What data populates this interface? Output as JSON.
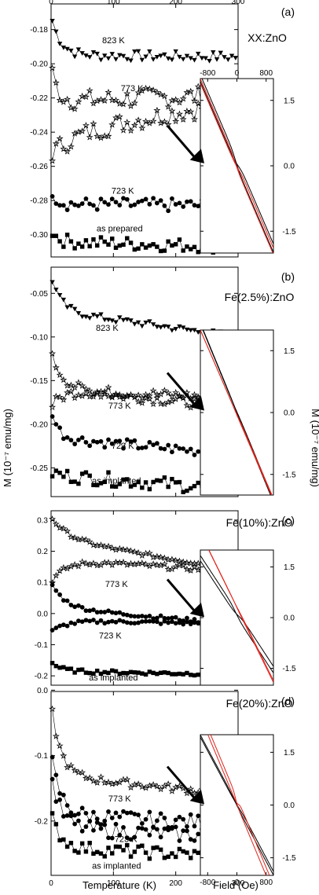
{
  "figure": {
    "y_axis_label": "M (10⁻⁷ emu/mg)",
    "right_y_axis_label": "M (10⁻⁷ emu/mg)",
    "x_axis_label": "Temperature (K)",
    "right_x_axis_label": "Field (Oe)"
  },
  "colors": {
    "black": "#000000",
    "red": "#e0241b"
  },
  "chart_data": [
    {
      "id": "a",
      "type": "scatter",
      "panel_label": "(a)",
      "sample": "XX:ZnO",
      "xlabel": "Temperature (K)",
      "ylabel": "M (10⁻⁷ emu/mg)",
      "xlim": [
        0,
        300
      ],
      "ylim": [
        -0.313,
        -0.165
      ],
      "xticks": [
        0,
        100,
        200,
        300
      ],
      "yticks": [
        -0.18,
        -0.2,
        -0.22,
        -0.24,
        -0.26,
        -0.28,
        -0.3
      ],
      "ytick_labels": [
        "-0.18",
        "-0.20",
        "-0.22",
        "-0.24",
        "-0.26",
        "-0.28",
        "-0.30"
      ],
      "series": [
        {
          "name": "823 K",
          "marker": "triangle-down",
          "start": -0.172,
          "plateau": -0.195,
          "end": -0.196,
          "tau": 15,
          "noise": 0.0015
        },
        {
          "name": "773 K",
          "marker": "star",
          "start": -0.202,
          "plateau": -0.222,
          "end": -0.218,
          "tau": 10,
          "noise": 0.003
        },
        {
          "name": "",
          "marker": "star",
          "start": -0.253,
          "plateau": -0.242,
          "end": -0.222,
          "tau": 30,
          "noise": 0.003
        },
        {
          "name": "723 K",
          "marker": "circle",
          "start": -0.272,
          "plateau": -0.282,
          "end": -0.283,
          "tau": 8,
          "noise": 0.002
        },
        {
          "name": "as prepared",
          "marker": "square",
          "start": -0.297,
          "plateau": -0.304,
          "end": -0.307,
          "tau": 10,
          "noise": 0.002
        }
      ],
      "annotations": [
        {
          "text": "823 K",
          "x": 100,
          "y": -0.188
        },
        {
          "text": "773 K",
          "x": 130,
          "y": -0.216
        },
        {
          "text": "723 K",
          "x": 115,
          "y": -0.276
        },
        {
          "text": "as prepared",
          "x": 110,
          "y": -0.298
        }
      ],
      "inset": {
        "xlim": [
          -1000,
          1000
        ],
        "ylim": [
          -2.0,
          2.0
        ],
        "xticks": [
          -800,
          0,
          800
        ],
        "xtick_labels": [
          "-800",
          "0",
          "800"
        ],
        "yticks": [
          1.5,
          0.0,
          -1.5
        ],
        "ytick_labels": [
          "1.5",
          "0.0",
          "-1.5"
        ],
        "show_xticks": "top",
        "curves": [
          {
            "color": "black",
            "slope": -0.00195,
            "offset": 0.05,
            "hysteresis": 0.25,
            "width": 120
          },
          {
            "color": "red",
            "slope": -0.00195,
            "offset": -0.02,
            "hysteresis": 0.18,
            "width": 110
          }
        ]
      }
    },
    {
      "id": "b",
      "type": "scatter",
      "panel_label": "(b)",
      "sample": "Fe(2.5%):ZnO",
      "xlabel": "Temperature (K)",
      "ylabel": "M (10⁻⁷ emu/mg)",
      "xlim": [
        0,
        300
      ],
      "ylim": [
        -0.283,
        -0.02
      ],
      "xticks": [
        0,
        100,
        200,
        300
      ],
      "yticks": [
        -0.05,
        -0.1,
        -0.15,
        -0.2,
        -0.25
      ],
      "ytick_labels": [
        "-0.05",
        "-0.10",
        "-0.15",
        "-0.20",
        "-0.25"
      ],
      "series": [
        {
          "name": "823 K",
          "marker": "triangle-down",
          "start": -0.03,
          "plateau": -0.07,
          "end": -0.1,
          "tau": 15,
          "noise": 0.002
        },
        {
          "name": "",
          "marker": "star",
          "start": -0.12,
          "plateau": -0.16,
          "end": -0.18,
          "tau": 20,
          "noise": 0.003
        },
        {
          "name": "773 K",
          "marker": "star",
          "start": -0.18,
          "plateau": -0.16,
          "end": -0.17,
          "tau": 20,
          "noise": 0.003
        },
        {
          "name": "723 K",
          "marker": "circle",
          "start": -0.18,
          "plateau": -0.215,
          "end": -0.235,
          "tau": 10,
          "noise": 0.003
        },
        {
          "name": "as implanted",
          "marker": "square",
          "start": -0.255,
          "plateau": -0.258,
          "end": -0.275,
          "tau": 10,
          "noise": 0.004
        }
      ],
      "annotations": [
        {
          "text": "823 K",
          "x": 90,
          "y": -0.093
        },
        {
          "text": "773 K",
          "x": 110,
          "y": -0.182
        },
        {
          "text": "723 K",
          "x": 115,
          "y": -0.228
        },
        {
          "text": "as implanted",
          "x": 105,
          "y": -0.268
        }
      ],
      "inset": {
        "xlim": [
          -1000,
          1000
        ],
        "ylim": [
          -2.0,
          2.0
        ],
        "xticks": [],
        "xtick_labels": [],
        "yticks": [
          1.5,
          0.0,
          -1.5
        ],
        "ytick_labels": [
          "1.5",
          "0.0",
          "-1.5"
        ],
        "show_xticks": "none",
        "curves": [
          {
            "color": "black",
            "slope": -0.00215,
            "offset": 0.0,
            "hysteresis": 0.06,
            "width": 150
          },
          {
            "color": "red",
            "slope": -0.00205,
            "offset": -0.06,
            "hysteresis": 0.03,
            "width": 150
          }
        ]
      }
    },
    {
      "id": "c",
      "type": "scatter",
      "panel_label": "(c)",
      "sample": "Fe(10%):ZnO",
      "xlabel": "Temperature (K)",
      "ylabel": "M (10⁻⁷ emu/mg)",
      "xlim": [
        0,
        300
      ],
      "ylim": [
        -0.23,
        0.33
      ],
      "xticks": [
        0,
        100,
        200,
        300
      ],
      "yticks": [
        0.3,
        0.2,
        0.1,
        0.0,
        -0.1,
        -0.2
      ],
      "ytick_labels": [
        "0.3",
        "0.2",
        "0.1",
        "0.0",
        "-0.1",
        "-0.2"
      ],
      "series": [
        {
          "name": "",
          "marker": "star",
          "start": 0.31,
          "plateau": 0.24,
          "end": 0.14,
          "tau": 25,
          "noise": 0.003
        },
        {
          "name": "773 K",
          "marker": "star",
          "start": 0.1,
          "plateau": 0.175,
          "end": 0.135,
          "tau": 25,
          "noise": 0.004
        },
        {
          "name": "",
          "marker": "circle",
          "start": 0.1,
          "plateau": 0.02,
          "end": -0.035,
          "tau": 20,
          "noise": 0.003
        },
        {
          "name": "723 K",
          "marker": "circle",
          "start": -0.06,
          "plateau": -0.02,
          "end": -0.035,
          "tau": 25,
          "noise": 0.003
        },
        {
          "name": "as implanted",
          "marker": "square",
          "start": -0.155,
          "plateau": -0.185,
          "end": -0.195,
          "tau": 15,
          "noise": 0.003
        }
      ],
      "annotations": [
        {
          "text": "773 K",
          "x": 105,
          "y": 0.085
        },
        {
          "text": "723 K",
          "x": 95,
          "y": -0.08
        },
        {
          "text": "as implanted",
          "x": 100,
          "y": -0.215
        }
      ],
      "inset": {
        "xlim": [
          -1000,
          1000
        ],
        "ylim": [
          -2.0,
          2.0
        ],
        "xticks": [],
        "xtick_labels": [],
        "yticks": [
          1.5,
          0.0,
          -1.5
        ],
        "ytick_labels": [
          "1.5",
          "0.0",
          "-1.5"
        ],
        "show_xticks": "none",
        "curves": [
          {
            "color": "black",
            "slope": -0.00165,
            "offset": 0.1,
            "hysteresis": 0.25,
            "width": 150
          },
          {
            "color": "red",
            "slope": -0.0022,
            "offset": 0.3,
            "hysteresis": 0.05,
            "width": 120
          }
        ]
      }
    },
    {
      "id": "d",
      "type": "scatter",
      "panel_label": "(d)",
      "sample": "Fe(20%):ZnO",
      "xlabel": "Temperature (K)",
      "ylabel": "M (10⁻⁷ emu/mg)",
      "xlim": [
        0,
        300
      ],
      "ylim": [
        -0.283,
        -0.002
      ],
      "xticks": [
        0,
        100,
        200,
        300
      ],
      "xtick_labels": [
        "0",
        "100",
        "200",
        "300"
      ],
      "yticks": [
        0.0,
        -0.1,
        -0.2
      ],
      "ytick_labels": [
        "0.0",
        "-0.1",
        "-0.2"
      ],
      "series": [
        {
          "name": "",
          "marker": "star",
          "start": -0.02,
          "plateau": -0.13,
          "end": -0.16,
          "tau": 15,
          "noise": 0.003
        },
        {
          "name": "773 K",
          "marker": "circle",
          "start": -0.1,
          "plateau": -0.19,
          "end": -0.205,
          "tau": 15,
          "noise": 0.006
        },
        {
          "name": "723 K",
          "marker": "circle",
          "start": -0.13,
          "plateau": -0.21,
          "end": -0.225,
          "tau": 15,
          "noise": 0.006
        },
        {
          "name": "as implanted",
          "marker": "square",
          "start": -0.19,
          "plateau": -0.24,
          "end": -0.255,
          "tau": 15,
          "noise": 0.005
        }
      ],
      "annotations": [
        {
          "text": "773 K",
          "x": 110,
          "y": -0.17
        },
        {
          "text": "723 K",
          "x": 120,
          "y": -0.232
        },
        {
          "text": "as implanted",
          "x": 105,
          "y": -0.273
        }
      ],
      "inset": {
        "xlim": [
          -1000,
          1000
        ],
        "ylim": [
          -2.0,
          2.0
        ],
        "xticks": [
          -800,
          0,
          800
        ],
        "xtick_labels": [
          "-800",
          "0",
          "800"
        ],
        "yticks": [
          1.5,
          0.0,
          -1.5
        ],
        "ytick_labels": [
          "1.5",
          "0.0",
          "-1.5"
        ],
        "show_xticks": "bottom",
        "curves": [
          {
            "color": "black",
            "slope": -0.00195,
            "offset": 0.0,
            "hysteresis": 0.12,
            "width": 150
          },
          {
            "color": "red",
            "slope": -0.0025,
            "offset": 0.1,
            "hysteresis": 0.3,
            "width": 60
          }
        ]
      }
    }
  ]
}
